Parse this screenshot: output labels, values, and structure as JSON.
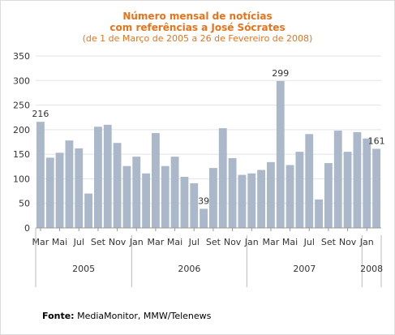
{
  "chart_data": {
    "type": "bar",
    "title_lines": [
      "Número mensal de notícias",
      "com referências a José Sócrates"
    ],
    "subtitle": "(de 1 de Março de 2005 a 26 de Fevereiro de 2008)",
    "ylim": [
      0,
      350
    ],
    "yticks": [
      "0",
      "50",
      "100",
      "150",
      "200",
      "250",
      "300",
      "350"
    ],
    "grid": true,
    "bar_color": "#aab8c9",
    "categories": [
      "Mar 2005",
      "Abr 2005",
      "Mai 2005",
      "Jun 2005",
      "Jul 2005",
      "Ago 2005",
      "Set 2005",
      "Out 2005",
      "Nov 2005",
      "Dez 2005",
      "Jan 2006",
      "Fev 2006",
      "Mar 2006",
      "Abr 2006",
      "Mai 2006",
      "Jun 2006",
      "Jul 2006",
      "Ago 2006",
      "Set 2006",
      "Out 2006",
      "Nov 2006",
      "Dez 2006",
      "Jan 2007",
      "Fev 2007",
      "Mar 2007",
      "Abr 2007",
      "Mai 2007",
      "Jun 2007",
      "Jul 2007",
      "Ago 2007",
      "Set 2007",
      "Out 2007",
      "Nov 2007",
      "Dez 2007",
      "Jan 2008",
      "Fev 2008"
    ],
    "values": [
      216,
      143,
      153,
      178,
      162,
      70,
      206,
      210,
      173,
      126,
      145,
      111,
      193,
      126,
      145,
      104,
      91,
      39,
      122,
      203,
      142,
      108,
      111,
      118,
      134,
      299,
      128,
      155,
      191,
      58,
      132,
      198,
      155,
      195,
      182,
      161
    ],
    "data_labels": [
      {
        "index": 0,
        "text": "216"
      },
      {
        "index": 17,
        "text": "39"
      },
      {
        "index": 25,
        "text": "299"
      },
      {
        "index": 35,
        "text": "161"
      }
    ],
    "month_ticks": [
      {
        "index": 0,
        "text": "Mar"
      },
      {
        "index": 2,
        "text": "Mai"
      },
      {
        "index": 4,
        "text": "Jul"
      },
      {
        "index": 6,
        "text": "Set"
      },
      {
        "index": 8,
        "text": "Nov"
      },
      {
        "index": 10,
        "text": "Jan"
      },
      {
        "index": 12,
        "text": "Mar"
      },
      {
        "index": 14,
        "text": "Mai"
      },
      {
        "index": 16,
        "text": "Jul"
      },
      {
        "index": 18,
        "text": "Set"
      },
      {
        "index": 20,
        "text": "Nov"
      },
      {
        "index": 22,
        "text": "Jan"
      },
      {
        "index": 24,
        "text": "Mar"
      },
      {
        "index": 26,
        "text": "Mai"
      },
      {
        "index": 28,
        "text": "Jul"
      },
      {
        "index": 30,
        "text": "Set"
      },
      {
        "index": 32,
        "text": "Nov"
      },
      {
        "index": 34,
        "text": "Jan"
      }
    ],
    "years": [
      {
        "label": "2005",
        "start": 0,
        "end": 9
      },
      {
        "label": "2006",
        "start": 10,
        "end": 21
      },
      {
        "label": "2007",
        "start": 22,
        "end": 33
      },
      {
        "label": "2008",
        "start": 34,
        "end": 35
      }
    ]
  },
  "source": {
    "label": "Fonte:",
    "text": " MediaMonitor, MMW/Telenews"
  }
}
